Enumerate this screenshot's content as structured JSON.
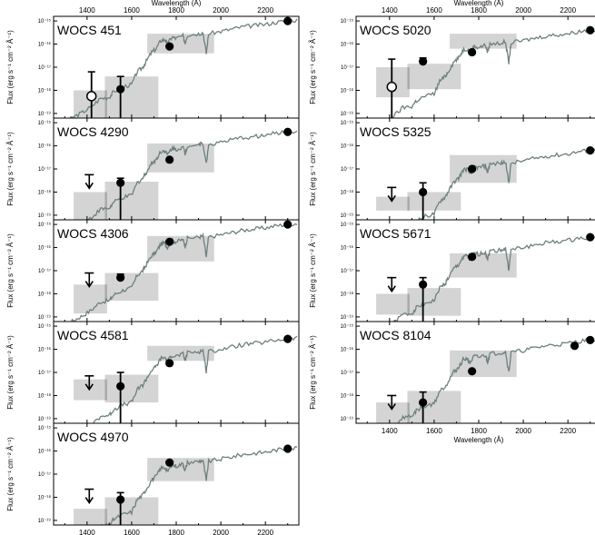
{
  "figure": {
    "xlabel": "Wavelength (Å)",
    "ylabel": "Flux (erg s⁻¹ cm⁻² Å⁻¹)",
    "x_ticks": [
      "1400",
      "1600",
      "1800",
      "2000",
      "2200"
    ],
    "y_ticks": [
      "10⁻¹⁹",
      "10⁻¹⁸",
      "10⁻¹⁷",
      "10⁻¹⁶",
      "10⁻¹⁵"
    ]
  },
  "colors": {
    "spectrum": "#6f7f7f",
    "box": "#cccccc",
    "box_overlap": "#aaaaaa",
    "marker": "#000000"
  },
  "chart_data": [
    {
      "type": "scatter",
      "title": "WOCS 451",
      "xlim": [
        1250,
        2350
      ],
      "ylim": [
        -19.2,
        -14.8
      ],
      "y_log": true,
      "boxes": [
        [
          1340,
          1490,
          -19.2,
          -18.0
        ],
        [
          1480,
          1720,
          -19.2,
          -17.4
        ],
        [
          1670,
          1970,
          -16.4,
          -15.55
        ]
      ],
      "points": [
        {
          "x": 1420,
          "y": -18.25,
          "err_lo": -20,
          "err_hi": -17.2,
          "style": "open"
        },
        {
          "x": 1550,
          "y": -17.95,
          "err_lo": -20,
          "err_hi": -17.4,
          "style": "filled"
        },
        {
          "x": 1770,
          "y": -16.1,
          "style": "filled"
        },
        {
          "x": 2300,
          "y": -15.0,
          "style": "filled"
        }
      ]
    },
    {
      "type": "scatter",
      "title": "WOCS 4290",
      "xlim": [
        1250,
        2350
      ],
      "ylim": [
        -19.2,
        -14.8
      ],
      "y_log": true,
      "boxes": [
        [
          1340,
          1490,
          -19.2,
          -18.0
        ],
        [
          1480,
          1720,
          -19.2,
          -17.55
        ],
        [
          1670,
          1970,
          -17.15,
          -15.9
        ]
      ],
      "points": [
        {
          "x": 1410,
          "y": -17.25,
          "style": "upper_limit"
        },
        {
          "x": 1550,
          "y": -17.6,
          "err_lo": -20,
          "err_hi": -17.4,
          "style": "filled"
        },
        {
          "x": 1770,
          "y": -16.6,
          "style": "filled"
        },
        {
          "x": 2300,
          "y": -15.4,
          "style": "filled"
        }
      ]
    },
    {
      "type": "scatter",
      "title": "WOCS 4306",
      "xlim": [
        1250,
        2350
      ],
      "ylim": [
        -19.2,
        -14.8
      ],
      "y_log": true,
      "boxes": [
        [
          1340,
          1490,
          -18.85,
          -17.6
        ],
        [
          1480,
          1720,
          -18.3,
          -17.1
        ],
        [
          1670,
          1970,
          -16.6,
          -15.5
        ]
      ],
      "points": [
        {
          "x": 1410,
          "y": -17.1,
          "style": "upper_limit"
        },
        {
          "x": 1550,
          "y": -17.3,
          "err_lo": -17.45,
          "err_hi": -17.15,
          "style": "filled"
        },
        {
          "x": 1770,
          "y": -15.75,
          "style": "filled"
        },
        {
          "x": 2300,
          "y": -15.0,
          "style": "filled"
        }
      ]
    },
    {
      "type": "scatter",
      "title": "WOCS 4581",
      "xlim": [
        1250,
        2350
      ],
      "ylim": [
        -19.2,
        -14.8
      ],
      "y_log": true,
      "boxes": [
        [
          1340,
          1490,
          -18.2,
          -17.3
        ],
        [
          1480,
          1720,
          -18.3,
          -17.1
        ],
        [
          1670,
          1970,
          -16.5,
          -15.85
        ]
      ],
      "points": [
        {
          "x": 1410,
          "y": -17.15,
          "style": "upper_limit"
        },
        {
          "x": 1550,
          "y": -17.6,
          "err_lo": -20,
          "err_hi": -17.0,
          "style": "filled"
        },
        {
          "x": 1770,
          "y": -16.6,
          "style": "filled"
        },
        {
          "x": 2300,
          "y": -15.55,
          "style": "filled"
        }
      ]
    },
    {
      "type": "scatter",
      "title": "WOCS 4970",
      "xlim": [
        1250,
        2350
      ],
      "ylim": [
        -19.2,
        -14.8
      ],
      "y_log": true,
      "boxes": [
        [
          1340,
          1490,
          -19.2,
          -18.5
        ],
        [
          1480,
          1720,
          -19.2,
          -18.0
        ],
        [
          1670,
          1970,
          -17.3,
          -16.3
        ]
      ],
      "points": [
        {
          "x": 1410,
          "y": -17.65,
          "style": "upper_limit"
        },
        {
          "x": 1550,
          "y": -18.1,
          "err_lo": -20,
          "err_hi": -17.8,
          "style": "filled"
        },
        {
          "x": 1770,
          "y": -16.5,
          "style": "filled"
        },
        {
          "x": 2300,
          "y": -15.9,
          "style": "filled"
        }
      ]
    },
    {
      "type": "scatter",
      "title": "WOCS 5020",
      "xlim": [
        1250,
        2350
      ],
      "ylim": [
        -19.2,
        -14.8
      ],
      "y_log": true,
      "boxes": [
        [
          1340,
          1490,
          -18.3,
          -17.0
        ],
        [
          1480,
          1720,
          -17.95,
          -16.85
        ],
        [
          1670,
          1970,
          -16.2,
          -15.55
        ]
      ],
      "points": [
        {
          "x": 1410,
          "y": -17.85,
          "err_lo": -20,
          "err_hi": -16.65,
          "style": "open"
        },
        {
          "x": 1550,
          "y": -16.75,
          "err_lo": -16.9,
          "err_hi": -16.6,
          "style": "filled"
        },
        {
          "x": 1770,
          "y": -16.35,
          "style": "filled"
        },
        {
          "x": 2300,
          "y": -15.4,
          "style": "filled"
        }
      ]
    },
    {
      "type": "scatter",
      "title": "WOCS 5325",
      "xlim": [
        1250,
        2350
      ],
      "ylim": [
        -19.2,
        -14.8
      ],
      "y_log": true,
      "boxes": [
        [
          1340,
          1490,
          -18.8,
          -18.2
        ],
        [
          1480,
          1720,
          -18.8,
          -18.0
        ],
        [
          1670,
          1970,
          -17.6,
          -16.4
        ]
      ],
      "points": [
        {
          "x": 1410,
          "y": -17.8,
          "style": "upper_limit"
        },
        {
          "x": 1550,
          "y": -18.0,
          "err_lo": -20,
          "err_hi": -17.6,
          "style": "filled"
        },
        {
          "x": 1770,
          "y": -17.0,
          "style": "filled"
        },
        {
          "x": 2300,
          "y": -16.2,
          "style": "filled"
        }
      ]
    },
    {
      "type": "scatter",
      "title": "WOCS 5671",
      "xlim": [
        1250,
        2350
      ],
      "ylim": [
        -19.2,
        -14.8
      ],
      "y_log": true,
      "boxes": [
        [
          1340,
          1490,
          -18.9,
          -18.0
        ],
        [
          1480,
          1720,
          -18.95,
          -17.75
        ],
        [
          1670,
          1970,
          -17.3,
          -16.25
        ]
      ],
      "points": [
        {
          "x": 1410,
          "y": -17.3,
          "style": "upper_limit"
        },
        {
          "x": 1550,
          "y": -17.6,
          "err_lo": -20,
          "err_hi": -17.3,
          "style": "filled"
        },
        {
          "x": 1770,
          "y": -16.4,
          "style": "filled"
        },
        {
          "x": 2300,
          "y": -15.55,
          "style": "filled"
        }
      ]
    },
    {
      "type": "scatter",
      "title": "WOCS 8104",
      "xlim": [
        1250,
        2350
      ],
      "ylim": [
        -19.2,
        -14.8
      ],
      "y_log": true,
      "boxes": [
        [
          1340,
          1490,
          -19.2,
          -18.3
        ],
        [
          1480,
          1720,
          -19.2,
          -17.8
        ],
        [
          1670,
          1970,
          -17.2,
          -16.05
        ]
      ],
      "points": [
        {
          "x": 1410,
          "y": -18.0,
          "style": "upper_limit"
        },
        {
          "x": 1550,
          "y": -18.3,
          "err_lo": -20,
          "err_hi": -17.85,
          "style": "filled"
        },
        {
          "x": 1770,
          "y": -16.95,
          "style": "filled"
        },
        {
          "x": 2230,
          "y": -15.85,
          "style": "filled"
        },
        {
          "x": 2300,
          "y": -15.6,
          "style": "filled"
        }
      ]
    }
  ]
}
